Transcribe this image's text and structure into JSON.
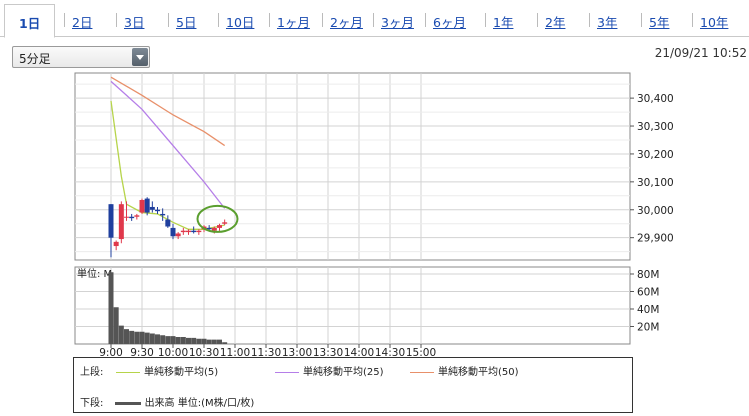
{
  "tabs": [
    {
      "label": "1日",
      "active": true
    },
    {
      "label": "2日"
    },
    {
      "label": "3日"
    },
    {
      "label": "5日"
    },
    {
      "label": "10日"
    },
    {
      "label": "1ヶ月"
    },
    {
      "label": "2ヶ月"
    },
    {
      "label": "3ヶ月"
    },
    {
      "label": "6ヶ月"
    },
    {
      "label": "1年"
    },
    {
      "label": "2年"
    },
    {
      "label": "3年"
    },
    {
      "label": "5年"
    },
    {
      "label": "10年"
    }
  ],
  "interval_select": {
    "value": "5分足"
  },
  "timestamp": "21/09/21 10:52",
  "chart_data": [
    {
      "type": "candlestick",
      "y_ticks": [
        "30,400",
        "30,300",
        "30,200",
        "30,100",
        "30,000",
        "29,900"
      ],
      "ylim": [
        29820,
        30490
      ],
      "grid": true,
      "candles": [
        {
          "t": "09:00",
          "o": 30020,
          "h": 30020,
          "l": 29830,
          "c": 29900
        },
        {
          "t": "09:05",
          "o": 29870,
          "h": 29890,
          "l": 29855,
          "c": 29885
        },
        {
          "t": "09:10",
          "o": 29895,
          "h": 30030,
          "l": 29880,
          "c": 30020
        },
        {
          "t": "09:15",
          "o": 29975,
          "h": 30030,
          "l": 29960,
          "c": 29975
        },
        {
          "t": "09:20",
          "o": 29975,
          "h": 29985,
          "l": 29960,
          "c": 29970
        },
        {
          "t": "09:25",
          "o": 29975,
          "h": 29985,
          "l": 29965,
          "c": 29980
        },
        {
          "t": "09:30",
          "o": 29990,
          "h": 30040,
          "l": 29985,
          "c": 30035
        },
        {
          "t": "09:35",
          "o": 30040,
          "h": 30045,
          "l": 29980,
          "c": 29990
        },
        {
          "t": "09:40",
          "o": 30010,
          "h": 30030,
          "l": 29990,
          "c": 30000
        },
        {
          "t": "09:45",
          "o": 30000,
          "h": 30010,
          "l": 29985,
          "c": 29995
        },
        {
          "t": "09:50",
          "o": 29985,
          "h": 30005,
          "l": 29960,
          "c": 29980
        },
        {
          "t": "09:55",
          "o": 29965,
          "h": 29980,
          "l": 29935,
          "c": 29940
        },
        {
          "t": "10:00",
          "o": 29935,
          "h": 29950,
          "l": 29895,
          "c": 29905
        },
        {
          "t": "10:05",
          "o": 29905,
          "h": 29920,
          "l": 29895,
          "c": 29915
        },
        {
          "t": "10:10",
          "o": 29920,
          "h": 29935,
          "l": 29910,
          "c": 29925
        },
        {
          "t": "10:15",
          "o": 29920,
          "h": 29930,
          "l": 29910,
          "c": 29925
        },
        {
          "t": "10:20",
          "o": 29925,
          "h": 29940,
          "l": 29915,
          "c": 29920
        },
        {
          "t": "10:25",
          "o": 29920,
          "h": 29930,
          "l": 29910,
          "c": 29925
        },
        {
          "t": "10:30",
          "o": 29930,
          "h": 29945,
          "l": 29920,
          "c": 29940
        },
        {
          "t": "10:35",
          "o": 29935,
          "h": 29945,
          "l": 29925,
          "c": 29930
        },
        {
          "t": "10:40",
          "o": 29925,
          "h": 29940,
          "l": 29915,
          "c": 29935
        },
        {
          "t": "10:45",
          "o": 29935,
          "h": 29950,
          "l": 29925,
          "c": 29945
        },
        {
          "t": "10:50",
          "o": 29950,
          "h": 29965,
          "l": 29945,
          "c": 29955
        }
      ],
      "series": [
        {
          "name": "単純移動平均(5)",
          "color": "#b6d44a",
          "points": [
            [
              "09:00",
              30390
            ],
            [
              "09:10",
              30120
            ],
            [
              "09:15",
              30020
            ],
            [
              "09:30",
              29990
            ],
            [
              "09:45",
              29985
            ],
            [
              "10:00",
              29955
            ],
            [
              "10:15",
              29930
            ],
            [
              "10:30",
              29930
            ],
            [
              "10:50",
              29945
            ]
          ]
        },
        {
          "name": "単純移動平均(25)",
          "color": "#b57ee8",
          "points": [
            [
              "09:00",
              30460
            ],
            [
              "09:30",
              30360
            ],
            [
              "10:00",
              30230
            ],
            [
              "10:30",
              30100
            ],
            [
              "10:50",
              30005
            ]
          ]
        },
        {
          "name": "単純移動平均(50)",
          "color": "#e8906a",
          "points": [
            [
              "09:00",
              30475
            ],
            [
              "09:30",
              30410
            ],
            [
              "10:00",
              30340
            ],
            [
              "10:30",
              30280
            ],
            [
              "10:50",
              30230
            ]
          ]
        }
      ],
      "highlight": {
        "t": "10:45",
        "y": 29960
      }
    },
    {
      "type": "bar",
      "unit_label": "単位: M",
      "y_ticks": [
        "80M",
        "60M",
        "40M",
        "20M"
      ],
      "ylim": [
        0,
        88
      ],
      "categories": [
        "09:00",
        "09:05",
        "09:10",
        "09:15",
        "09:20",
        "09:25",
        "09:30",
        "09:35",
        "09:40",
        "09:45",
        "09:50",
        "09:55",
        "10:00",
        "10:05",
        "10:10",
        "10:15",
        "10:20",
        "10:25",
        "10:30",
        "10:35",
        "10:40",
        "10:45",
        "10:50"
      ],
      "values": [
        82,
        42,
        21,
        17,
        15,
        14,
        14,
        13,
        12,
        11,
        10,
        9,
        9,
        8,
        8,
        7,
        7,
        6,
        6,
        5,
        5,
        5,
        2
      ],
      "x_ticks": [
        "9:00",
        "9:30",
        "10:00",
        "10:30",
        "11:00",
        "11:30",
        "13:00",
        "13:30",
        "14:00",
        "14:30",
        "15:00"
      ]
    }
  ],
  "legend": {
    "upper_label": "上段:",
    "lower_label": "下段:",
    "items": [
      "単純移動平均(5)",
      "単純移動平均(25)",
      "単純移動平均(50)"
    ],
    "volume_item": "出来高 単位:(M株/口/枚)"
  }
}
